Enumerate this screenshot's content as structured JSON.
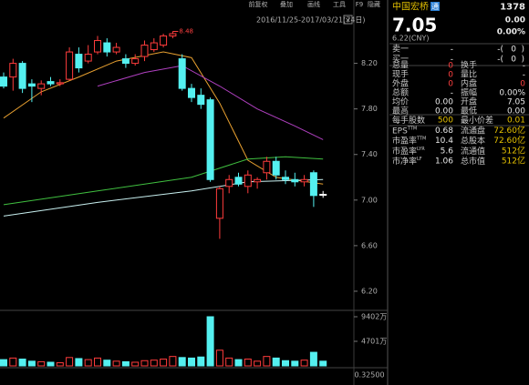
{
  "toolbar": [
    "前复权",
    "叠加",
    "画线",
    "工具",
    "F9",
    "隐藏"
  ],
  "chart_data": {
    "type": "candlestick",
    "date_range": "2016/11/25-2017/03/21(74日)",
    "high_label": 8.48,
    "ylim": [
      6.04,
      8.66
    ],
    "yticks": [
      {
        "value": 8.2,
        "label": "8.20"
      },
      {
        "value": 7.8,
        "label": "7.80"
      },
      {
        "value": 7.4,
        "label": "7.40"
      },
      {
        "value": 7.0,
        "label": "7.00"
      },
      {
        "value": 6.6,
        "label": "6.60"
      },
      {
        "value": 6.2,
        "label": "6.20"
      }
    ],
    "up_color": "#ff3c3c",
    "down_color": "#54f0f0",
    "flat_color": "#ffffff",
    "open": [
      8.08,
      8.08,
      8.2,
      8.02,
      7.98,
      8.04,
      8.02,
      8.06,
      8.28,
      8.22,
      8.3,
      8.38,
      8.3,
      8.24,
      8.2,
      8.26,
      8.32,
      8.36,
      8.44,
      8.24,
      7.98,
      7.92,
      7.88,
      6.84,
      7.12,
      7.2,
      7.12,
      7.16,
      7.24,
      7.34,
      7.2,
      7.18,
      7.16,
      7.24,
      7.05
    ],
    "high": [
      8.12,
      8.24,
      8.22,
      8.06,
      8.05,
      8.08,
      8.06,
      8.34,
      8.34,
      8.36,
      8.44,
      8.42,
      8.38,
      8.28,
      8.28,
      8.4,
      8.42,
      8.46,
      8.48,
      8.28,
      8.02,
      7.98,
      7.9,
      7.12,
      7.22,
      7.24,
      7.26,
      7.2,
      7.38,
      7.38,
      7.26,
      7.24,
      7.22,
      7.26,
      7.08
    ],
    "low": [
      7.98,
      7.96,
      7.94,
      7.86,
      7.92,
      8.0,
      8.0,
      8.05,
      8.12,
      8.2,
      8.28,
      8.26,
      8.28,
      8.16,
      8.18,
      8.22,
      8.3,
      8.34,
      8.42,
      7.96,
      7.86,
      7.8,
      7.16,
      6.66,
      7.06,
      7.12,
      7.06,
      7.1,
      7.18,
      7.18,
      7.14,
      7.12,
      7.12,
      6.94,
      7.02
    ],
    "close": [
      8.0,
      8.2,
      7.98,
      8.0,
      8.02,
      8.02,
      8.03,
      8.3,
      8.16,
      8.28,
      8.4,
      8.3,
      8.34,
      8.2,
      8.24,
      8.36,
      8.38,
      8.44,
      8.46,
      7.98,
      7.9,
      7.84,
      7.18,
      7.1,
      7.18,
      7.14,
      7.22,
      7.18,
      7.34,
      7.22,
      7.18,
      7.16,
      7.18,
      7.04,
      7.05
    ],
    "ma": [
      {
        "color": "#e8a030",
        "x": [
          0,
          4,
          8,
          12,
          17,
          20,
          23,
          26,
          29,
          34
        ],
        "values": [
          7.72,
          7.95,
          8.08,
          8.22,
          8.3,
          8.25,
          7.85,
          7.35,
          7.2,
          7.14
        ]
      },
      {
        "color": "#b040c0",
        "x": [
          10,
          15,
          19,
          23,
          27,
          31,
          34
        ],
        "values": [
          8.0,
          8.12,
          8.18,
          8.0,
          7.8,
          7.65,
          7.53
        ]
      },
      {
        "color": "#40c040",
        "x": [
          0,
          10,
          20,
          26,
          30,
          34
        ],
        "values": [
          6.96,
          7.08,
          7.2,
          7.36,
          7.38,
          7.36
        ]
      },
      {
        "color": "#c8f0f0",
        "x": [
          0,
          10,
          20,
          26,
          34
        ],
        "values": [
          6.86,
          6.98,
          7.08,
          7.16,
          7.18
        ]
      }
    ],
    "volume": {
      "ylim": [
        0,
        9402
      ],
      "yticks": [
        {
          "value": 9402,
          "label": "9402万"
        },
        {
          "value": 4701,
          "label": "4701万"
        }
      ],
      "values": [
        1200,
        1500,
        1300,
        900,
        800,
        700,
        600,
        1600,
        1400,
        1200,
        1500,
        1100,
        900,
        800,
        700,
        1000,
        1100,
        1300,
        1800,
        1600,
        1500,
        1700,
        9402,
        3000,
        1500,
        1200,
        1300,
        900,
        1800,
        1500,
        1000,
        900,
        1100,
        2600,
        900
      ]
    },
    "indicator_label": "0.32500"
  },
  "quote": {
    "name": "中国宏桥",
    "badge": "通",
    "code": "1378",
    "price": "7.05",
    "change": "0.00",
    "change_pct": "0.00%",
    "ref_price": "6.22(CNY)",
    "book": [
      [
        "卖一",
        "-",
        "-(",
        "0",
        ")"
      ],
      [
        "买一",
        "-",
        "-(",
        "0",
        ")"
      ]
    ],
    "stats": [
      [
        "总量",
        "0",
        "换手",
        "-"
      ],
      [
        "现手",
        "0",
        "量比",
        "-"
      ],
      [
        "外盘",
        "0",
        "内盘",
        "0"
      ],
      [
        "总额",
        "-",
        "振幅",
        "0.00%"
      ],
      [
        "均价",
        "0.00",
        "开盘",
        "7.05"
      ],
      [
        "最高",
        "0.00",
        "最低",
        "0.00"
      ]
    ],
    "fundamentals": [
      [
        {
          "label": "每手股数",
          "sup": ""
        },
        "500",
        {
          "label": "最小价差",
          "sup": ""
        },
        "0.01"
      ],
      [
        {
          "label": "EPS",
          "sup": "TTM"
        },
        "0.68",
        {
          "label": "流通盘",
          "sup": ""
        },
        "72.60亿"
      ],
      [
        {
          "label": "市盈率",
          "sup": "TTM"
        },
        "10.4",
        {
          "label": "总股本",
          "sup": ""
        },
        "72.60亿"
      ],
      [
        {
          "label": "市盈率",
          "sup": "LYR"
        },
        "5.6",
        {
          "label": "流通值",
          "sup": ""
        },
        "512亿"
      ],
      [
        {
          "label": "市净率",
          "sup": "LF"
        },
        "1.06",
        {
          "label": "总市值",
          "sup": ""
        },
        "512亿"
      ]
    ]
  }
}
